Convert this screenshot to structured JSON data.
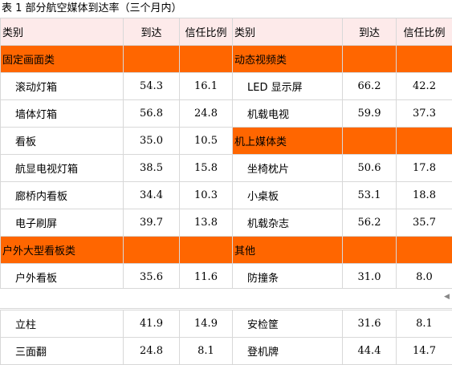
{
  "caption": "表 1  部分航空媒体到达率（三个月内）",
  "header": {
    "col_category": "类别",
    "col_reach": "到达",
    "col_trust": "信任比例"
  },
  "categories": {
    "fixed_screen": "固定画面类",
    "dynamic_video": "动态视频类",
    "in_flight": "机上媒体类",
    "outdoor_billboard": "户外大型看板类",
    "other": "其他"
  },
  "rows_top": [
    {
      "left": {
        "name": "滚动灯箱",
        "reach": "54.3",
        "trust": "16.1"
      },
      "right": {
        "name": "LED 显示屏",
        "reach": "66.2",
        "trust": "42.2"
      }
    },
    {
      "left": {
        "name": "墙体灯箱",
        "reach": "56.8",
        "trust": "24.8"
      },
      "right": {
        "name": "机载电视",
        "reach": "59.9",
        "trust": "37.3"
      }
    },
    {
      "left": {
        "name": "看板",
        "reach": "35.0",
        "trust": "10.5"
      }
    },
    {
      "left": {
        "name": "航显电视灯箱",
        "reach": "38.5",
        "trust": "15.8"
      },
      "right": {
        "name": "坐椅枕片",
        "reach": "50.6",
        "trust": "17.8"
      }
    },
    {
      "left": {
        "name": "廊桥内看板",
        "reach": "34.4",
        "trust": "10.3"
      },
      "right": {
        "name": "小桌板",
        "reach": "53.1",
        "trust": "18.8"
      }
    },
    {
      "left": {
        "name": "电子刷屏",
        "reach": "39.7",
        "trust": "13.8"
      },
      "right": {
        "name": "机载杂志",
        "reach": "56.2",
        "trust": "35.7"
      }
    },
    {
      "left": {
        "name": "户外看板",
        "reach": "35.6",
        "trust": "11.6"
      },
      "right": {
        "name": "防撞条",
        "reach": "31.0",
        "trust": "8.0"
      }
    }
  ],
  "rows_bottom": [
    {
      "left": {
        "name": "立柱",
        "reach": "41.9",
        "trust": "14.9"
      },
      "right": {
        "name": "安检筐",
        "reach": "31.6",
        "trust": "8.1"
      }
    },
    {
      "left": {
        "name": "三面翻",
        "reach": "24.8",
        "trust": "8.1"
      },
      "right": {
        "name": "登机牌",
        "reach": "44.4",
        "trust": "14.7"
      }
    }
  ],
  "colors": {
    "category_bg": "#ff6600",
    "header_bg": "#fdeaea"
  }
}
